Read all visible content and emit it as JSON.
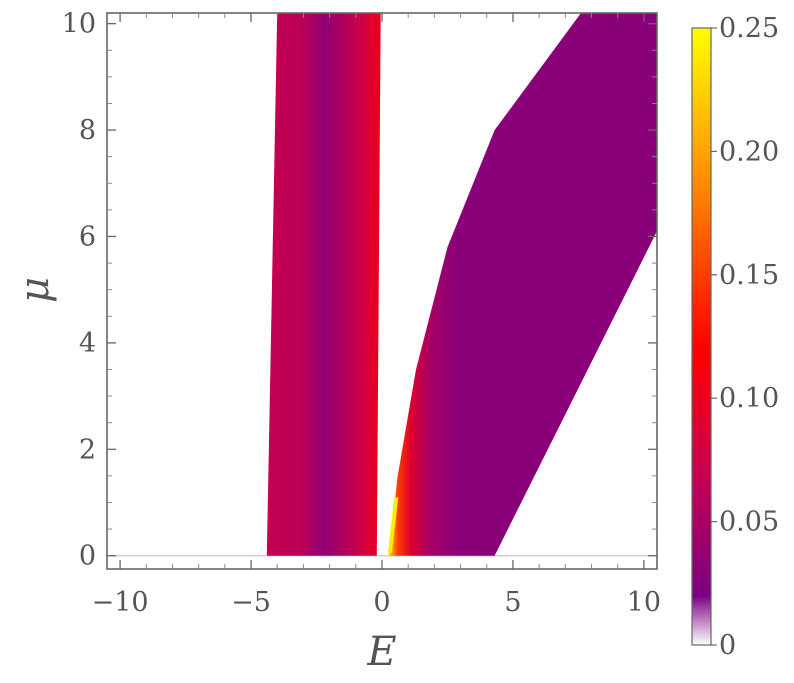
{
  "chart_data": {
    "type": "heatmap",
    "title": "",
    "xlabel": "E",
    "ylabel": "μ",
    "xlim": [
      -10.5,
      10.5
    ],
    "ylim": [
      -0.25,
      10.2
    ],
    "x_ticks": [
      {
        "value": -10,
        "label": "−10"
      },
      {
        "value": -5,
        "label": "−5"
      },
      {
        "value": 0,
        "label": "0"
      },
      {
        "value": 5,
        "label": "5"
      },
      {
        "value": 10,
        "label": "10"
      }
    ],
    "y_ticks": [
      {
        "value": 0,
        "label": "0"
      },
      {
        "value": 2,
        "label": "2"
      },
      {
        "value": 4,
        "label": "4"
      },
      {
        "value": 6,
        "label": "6"
      },
      {
        "value": 8,
        "label": "8"
      },
      {
        "value": 10,
        "label": "10"
      }
    ],
    "grid": false,
    "colorbar": {
      "range": [
        0,
        0.25
      ],
      "ticks": [
        {
          "value": 0,
          "label": "0"
        },
        {
          "value": 0.05,
          "label": "0.05"
        },
        {
          "value": 0.1,
          "label": "0.10"
        },
        {
          "value": 0.15,
          "label": "0.15"
        },
        {
          "value": 0.2,
          "label": "0.20"
        },
        {
          "value": 0.25,
          "label": "0.25"
        }
      ],
      "gradient": [
        "#ffffff",
        "#7a0082",
        "#c8004f",
        "#ff0000",
        "#ff9a00",
        "#ffff00"
      ]
    },
    "regions": [
      {
        "id": "left-band",
        "boundary": [
          [
            -4.4,
            0
          ],
          [
            -4.0,
            10.2
          ],
          [
            -0.05,
            10.2
          ],
          [
            -0.2,
            0
          ]
        ],
        "value_stops": [
          {
            "E": -4.4,
            "value": 0.07
          },
          {
            "E": -3.0,
            "value": 0.06
          },
          {
            "E": -2.2,
            "value": 0.035
          },
          {
            "E": -1.6,
            "value": 0.05
          },
          {
            "E": -0.8,
            "value": 0.075
          },
          {
            "E": -0.2,
            "value": 0.1
          }
        ]
      },
      {
        "id": "right-band",
        "boundary": [
          [
            0.25,
            0
          ],
          [
            0.6,
            1.5
          ],
          [
            1.3,
            3.5
          ],
          [
            2.5,
            5.8
          ],
          [
            4.3,
            8.0
          ],
          [
            7.6,
            10.2
          ],
          [
            10.5,
            10.2
          ],
          [
            10.5,
            6.1
          ],
          [
            4.3,
            0
          ]
        ],
        "value_stops": [
          {
            "E": 0.3,
            "value": 0.22
          },
          {
            "E": 0.6,
            "value": 0.15
          },
          {
            "E": 1.1,
            "value": 0.09
          },
          {
            "E": 1.8,
            "value": 0.05
          },
          {
            "E": 2.8,
            "value": 0.03
          },
          {
            "E": 10.5,
            "value": 0.03
          }
        ]
      }
    ]
  }
}
